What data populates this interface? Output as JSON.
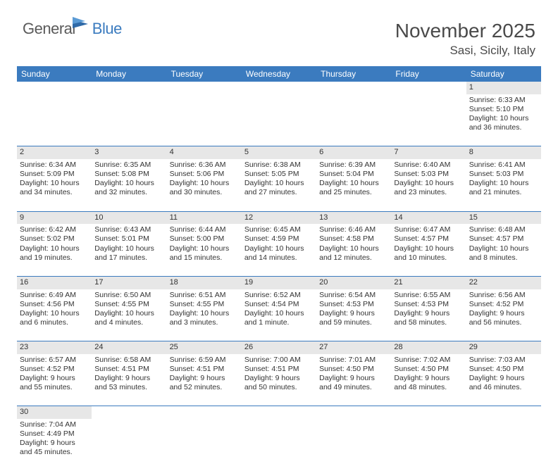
{
  "logo": {
    "general": "General",
    "blue": "Blue"
  },
  "title": "November 2025",
  "location": "Sasi, Sicily, Italy",
  "colors": {
    "header_bg": "#3b7bbf",
    "header_text": "#ffffff",
    "daynum_bg": "#e7e7e7",
    "border": "#3b7bbf",
    "text": "#333333",
    "title_text": "#4a4a4a"
  },
  "weekdays": [
    "Sunday",
    "Monday",
    "Tuesday",
    "Wednesday",
    "Thursday",
    "Friday",
    "Saturday"
  ],
  "weeks": [
    [
      null,
      null,
      null,
      null,
      null,
      null,
      {
        "n": "1",
        "sunrise": "Sunrise: 6:33 AM",
        "sunset": "Sunset: 5:10 PM",
        "daylight": "Daylight: 10 hours and 36 minutes."
      }
    ],
    [
      {
        "n": "2",
        "sunrise": "Sunrise: 6:34 AM",
        "sunset": "Sunset: 5:09 PM",
        "daylight": "Daylight: 10 hours and 34 minutes."
      },
      {
        "n": "3",
        "sunrise": "Sunrise: 6:35 AM",
        "sunset": "Sunset: 5:08 PM",
        "daylight": "Daylight: 10 hours and 32 minutes."
      },
      {
        "n": "4",
        "sunrise": "Sunrise: 6:36 AM",
        "sunset": "Sunset: 5:06 PM",
        "daylight": "Daylight: 10 hours and 30 minutes."
      },
      {
        "n": "5",
        "sunrise": "Sunrise: 6:38 AM",
        "sunset": "Sunset: 5:05 PM",
        "daylight": "Daylight: 10 hours and 27 minutes."
      },
      {
        "n": "6",
        "sunrise": "Sunrise: 6:39 AM",
        "sunset": "Sunset: 5:04 PM",
        "daylight": "Daylight: 10 hours and 25 minutes."
      },
      {
        "n": "7",
        "sunrise": "Sunrise: 6:40 AM",
        "sunset": "Sunset: 5:03 PM",
        "daylight": "Daylight: 10 hours and 23 minutes."
      },
      {
        "n": "8",
        "sunrise": "Sunrise: 6:41 AM",
        "sunset": "Sunset: 5:03 PM",
        "daylight": "Daylight: 10 hours and 21 minutes."
      }
    ],
    [
      {
        "n": "9",
        "sunrise": "Sunrise: 6:42 AM",
        "sunset": "Sunset: 5:02 PM",
        "daylight": "Daylight: 10 hours and 19 minutes."
      },
      {
        "n": "10",
        "sunrise": "Sunrise: 6:43 AM",
        "sunset": "Sunset: 5:01 PM",
        "daylight": "Daylight: 10 hours and 17 minutes."
      },
      {
        "n": "11",
        "sunrise": "Sunrise: 6:44 AM",
        "sunset": "Sunset: 5:00 PM",
        "daylight": "Daylight: 10 hours and 15 minutes."
      },
      {
        "n": "12",
        "sunrise": "Sunrise: 6:45 AM",
        "sunset": "Sunset: 4:59 PM",
        "daylight": "Daylight: 10 hours and 14 minutes."
      },
      {
        "n": "13",
        "sunrise": "Sunrise: 6:46 AM",
        "sunset": "Sunset: 4:58 PM",
        "daylight": "Daylight: 10 hours and 12 minutes."
      },
      {
        "n": "14",
        "sunrise": "Sunrise: 6:47 AM",
        "sunset": "Sunset: 4:57 PM",
        "daylight": "Daylight: 10 hours and 10 minutes."
      },
      {
        "n": "15",
        "sunrise": "Sunrise: 6:48 AM",
        "sunset": "Sunset: 4:57 PM",
        "daylight": "Daylight: 10 hours and 8 minutes."
      }
    ],
    [
      {
        "n": "16",
        "sunrise": "Sunrise: 6:49 AM",
        "sunset": "Sunset: 4:56 PM",
        "daylight": "Daylight: 10 hours and 6 minutes."
      },
      {
        "n": "17",
        "sunrise": "Sunrise: 6:50 AM",
        "sunset": "Sunset: 4:55 PM",
        "daylight": "Daylight: 10 hours and 4 minutes."
      },
      {
        "n": "18",
        "sunrise": "Sunrise: 6:51 AM",
        "sunset": "Sunset: 4:55 PM",
        "daylight": "Daylight: 10 hours and 3 minutes."
      },
      {
        "n": "19",
        "sunrise": "Sunrise: 6:52 AM",
        "sunset": "Sunset: 4:54 PM",
        "daylight": "Daylight: 10 hours and 1 minute."
      },
      {
        "n": "20",
        "sunrise": "Sunrise: 6:54 AM",
        "sunset": "Sunset: 4:53 PM",
        "daylight": "Daylight: 9 hours and 59 minutes."
      },
      {
        "n": "21",
        "sunrise": "Sunrise: 6:55 AM",
        "sunset": "Sunset: 4:53 PM",
        "daylight": "Daylight: 9 hours and 58 minutes."
      },
      {
        "n": "22",
        "sunrise": "Sunrise: 6:56 AM",
        "sunset": "Sunset: 4:52 PM",
        "daylight": "Daylight: 9 hours and 56 minutes."
      }
    ],
    [
      {
        "n": "23",
        "sunrise": "Sunrise: 6:57 AM",
        "sunset": "Sunset: 4:52 PM",
        "daylight": "Daylight: 9 hours and 55 minutes."
      },
      {
        "n": "24",
        "sunrise": "Sunrise: 6:58 AM",
        "sunset": "Sunset: 4:51 PM",
        "daylight": "Daylight: 9 hours and 53 minutes."
      },
      {
        "n": "25",
        "sunrise": "Sunrise: 6:59 AM",
        "sunset": "Sunset: 4:51 PM",
        "daylight": "Daylight: 9 hours and 52 minutes."
      },
      {
        "n": "26",
        "sunrise": "Sunrise: 7:00 AM",
        "sunset": "Sunset: 4:51 PM",
        "daylight": "Daylight: 9 hours and 50 minutes."
      },
      {
        "n": "27",
        "sunrise": "Sunrise: 7:01 AM",
        "sunset": "Sunset: 4:50 PM",
        "daylight": "Daylight: 9 hours and 49 minutes."
      },
      {
        "n": "28",
        "sunrise": "Sunrise: 7:02 AM",
        "sunset": "Sunset: 4:50 PM",
        "daylight": "Daylight: 9 hours and 48 minutes."
      },
      {
        "n": "29",
        "sunrise": "Sunrise: 7:03 AM",
        "sunset": "Sunset: 4:50 PM",
        "daylight": "Daylight: 9 hours and 46 minutes."
      }
    ],
    [
      {
        "n": "30",
        "sunrise": "Sunrise: 7:04 AM",
        "sunset": "Sunset: 4:49 PM",
        "daylight": "Daylight: 9 hours and 45 minutes."
      },
      null,
      null,
      null,
      null,
      null,
      null
    ]
  ]
}
